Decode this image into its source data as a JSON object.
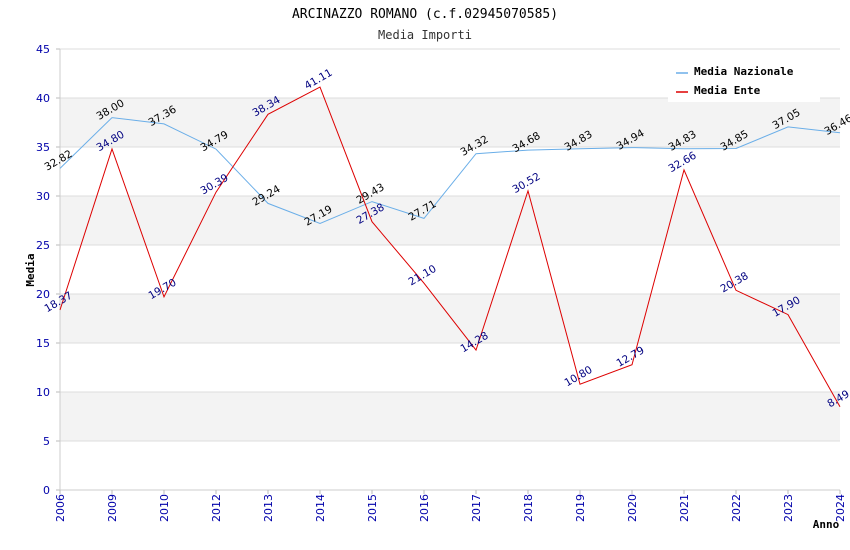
{
  "chart_data": {
    "type": "line",
    "title": "ARCINAZZO ROMANO (c.f.02945070585)",
    "subtitle": "Media Importi",
    "xlabel": "Anno",
    "ylabel": "Media",
    "ylim": [
      0,
      45
    ],
    "yticks": [
      "0",
      "5",
      "10",
      "15",
      "20",
      "25",
      "30",
      "35",
      "40",
      "45"
    ],
    "grid": true,
    "legend_position": "top-right",
    "categories": [
      "2006",
      "2009",
      "2010",
      "2012",
      "2013",
      "2014",
      "2015",
      "2016",
      "2017",
      "2018",
      "2019",
      "2020",
      "2021",
      "2022",
      "2023",
      "2024"
    ],
    "series": [
      {
        "name": "Media Nazionale",
        "color": "#6aaee8",
        "values": [
          32.82,
          38.0,
          37.36,
          34.79,
          29.24,
          27.19,
          29.43,
          27.71,
          34.32,
          34.68,
          34.83,
          34.94,
          34.83,
          34.85,
          37.05,
          36.46
        ],
        "labels": [
          "32.82",
          "38.00",
          "37.36",
          "34.79",
          "29.24",
          "27.19",
          "29.43",
          "27.71",
          "34.32",
          "34.68",
          "34.83",
          "34.94",
          "34.83",
          "34.85",
          "37.05",
          "36.46"
        ]
      },
      {
        "name": "Media Ente",
        "color": "#dd0000",
        "values": [
          18.37,
          34.8,
          19.7,
          30.39,
          38.34,
          41.11,
          27.38,
          21.1,
          14.28,
          30.52,
          10.8,
          12.79,
          32.66,
          20.38,
          17.9,
          8.49
        ],
        "labels": [
          "18.37",
          "34.80",
          "19.70",
          "30.39",
          "38.34",
          "41.11",
          "27.38",
          "21.10",
          "14.28",
          "30.52",
          "10.80",
          "12.79",
          "32.66",
          "20.38",
          "17.90",
          "8.49"
        ]
      }
    ]
  }
}
